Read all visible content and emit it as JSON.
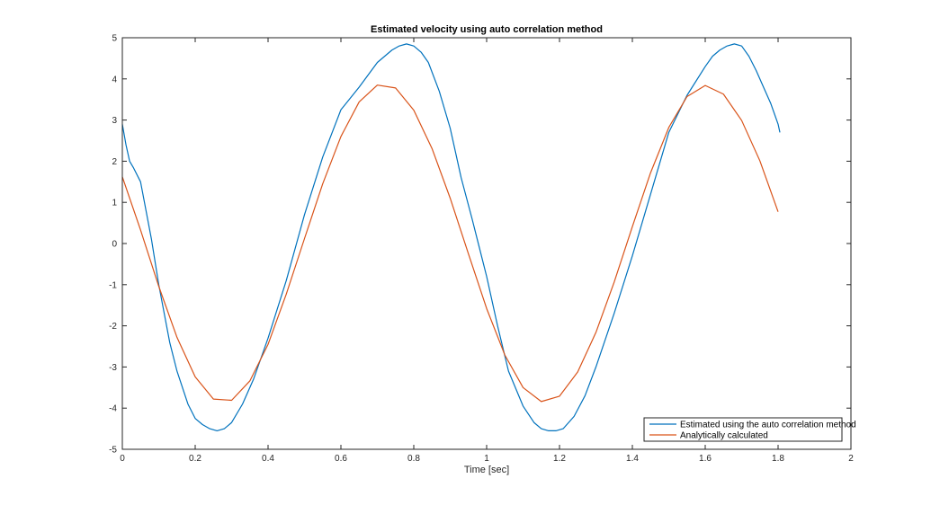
{
  "chart_data": {
    "type": "line",
    "title": "Estimated velocity using auto correlation method",
    "xlabel": "Time [sec]",
    "ylabel": "",
    "xlim": [
      0,
      2
    ],
    "ylim": [
      -5,
      5
    ],
    "xticks": [
      0,
      0.2,
      0.4,
      0.6,
      0.8,
      1,
      1.2,
      1.4,
      1.6,
      1.8,
      2
    ],
    "xtick_labels": [
      "0",
      "0.2",
      "0.4",
      "0.6",
      "0.8",
      "1",
      "1.2",
      "1.4",
      "1.6",
      "1.8",
      "2"
    ],
    "yticks": [
      -5,
      -4,
      -3,
      -2,
      -1,
      0,
      1,
      2,
      3,
      4,
      5
    ],
    "ytick_labels": [
      "-5",
      "-4",
      "-3",
      "-2",
      "-1",
      "0",
      "1",
      "2",
      "3",
      "4",
      "5"
    ],
    "grid": false,
    "legend_position": "bottom-right",
    "series": [
      {
        "name": "Estimated using the auto correlation method",
        "color": "#0072BD",
        "x": [
          0,
          0.01,
          0.02,
          0.03,
          0.05,
          0.08,
          0.1,
          0.13,
          0.15,
          0.18,
          0.2,
          0.22,
          0.24,
          0.26,
          0.28,
          0.3,
          0.33,
          0.36,
          0.4,
          0.45,
          0.5,
          0.55,
          0.6,
          0.65,
          0.7,
          0.72,
          0.74,
          0.76,
          0.78,
          0.8,
          0.82,
          0.84,
          0.87,
          0.9,
          0.93,
          0.96,
          0.98,
          1.0,
          1.03,
          1.06,
          1.1,
          1.13,
          1.15,
          1.17,
          1.19,
          1.21,
          1.24,
          1.27,
          1.3,
          1.35,
          1.4,
          1.45,
          1.5,
          1.55,
          1.6,
          1.62,
          1.64,
          1.66,
          1.68,
          1.7,
          1.72,
          1.74,
          1.76,
          1.78,
          1.8,
          1.805
        ],
        "y": [
          2.9,
          2.4,
          2.0,
          1.85,
          1.5,
          0.1,
          -1.0,
          -2.4,
          -3.1,
          -3.9,
          -4.25,
          -4.4,
          -4.5,
          -4.55,
          -4.5,
          -4.35,
          -3.9,
          -3.3,
          -2.3,
          -0.9,
          0.7,
          2.1,
          3.25,
          3.8,
          4.4,
          4.55,
          4.7,
          4.8,
          4.85,
          4.8,
          4.65,
          4.4,
          3.7,
          2.8,
          1.6,
          0.6,
          -0.1,
          -0.8,
          -2.0,
          -3.1,
          -3.95,
          -4.35,
          -4.5,
          -4.55,
          -4.55,
          -4.5,
          -4.2,
          -3.7,
          -3.0,
          -1.7,
          -0.3,
          1.2,
          2.7,
          3.6,
          4.3,
          4.55,
          4.7,
          4.8,
          4.85,
          4.8,
          4.55,
          4.2,
          3.8,
          3.4,
          2.9,
          2.7
        ]
      },
      {
        "name": "Analytically calculated",
        "color": "#D95319",
        "x": [
          0,
          0.05,
          0.1,
          0.15,
          0.2,
          0.25,
          0.3,
          0.35,
          0.4,
          0.45,
          0.5,
          0.55,
          0.6,
          0.65,
          0.7,
          0.75,
          0.8,
          0.85,
          0.9,
          0.95,
          1.0,
          1.05,
          1.1,
          1.15,
          1.2,
          1.25,
          1.3,
          1.35,
          1.4,
          1.45,
          1.5,
          1.55,
          1.6,
          1.65,
          1.7,
          1.75,
          1.8
        ],
        "y": [
          1.62,
          0.33,
          -1.04,
          -2.28,
          -3.24,
          -3.78,
          -3.81,
          -3.34,
          -2.45,
          -1.23,
          0.12,
          1.45,
          2.6,
          3.44,
          3.85,
          3.78,
          3.24,
          2.31,
          1.1,
          -0.25,
          -1.58,
          -2.71,
          -3.5,
          -3.84,
          -3.71,
          -3.12,
          -2.16,
          -0.94,
          0.41,
          1.72,
          2.82,
          3.57,
          3.84,
          3.63,
          2.99,
          2.01,
          0.77
        ]
      }
    ]
  }
}
